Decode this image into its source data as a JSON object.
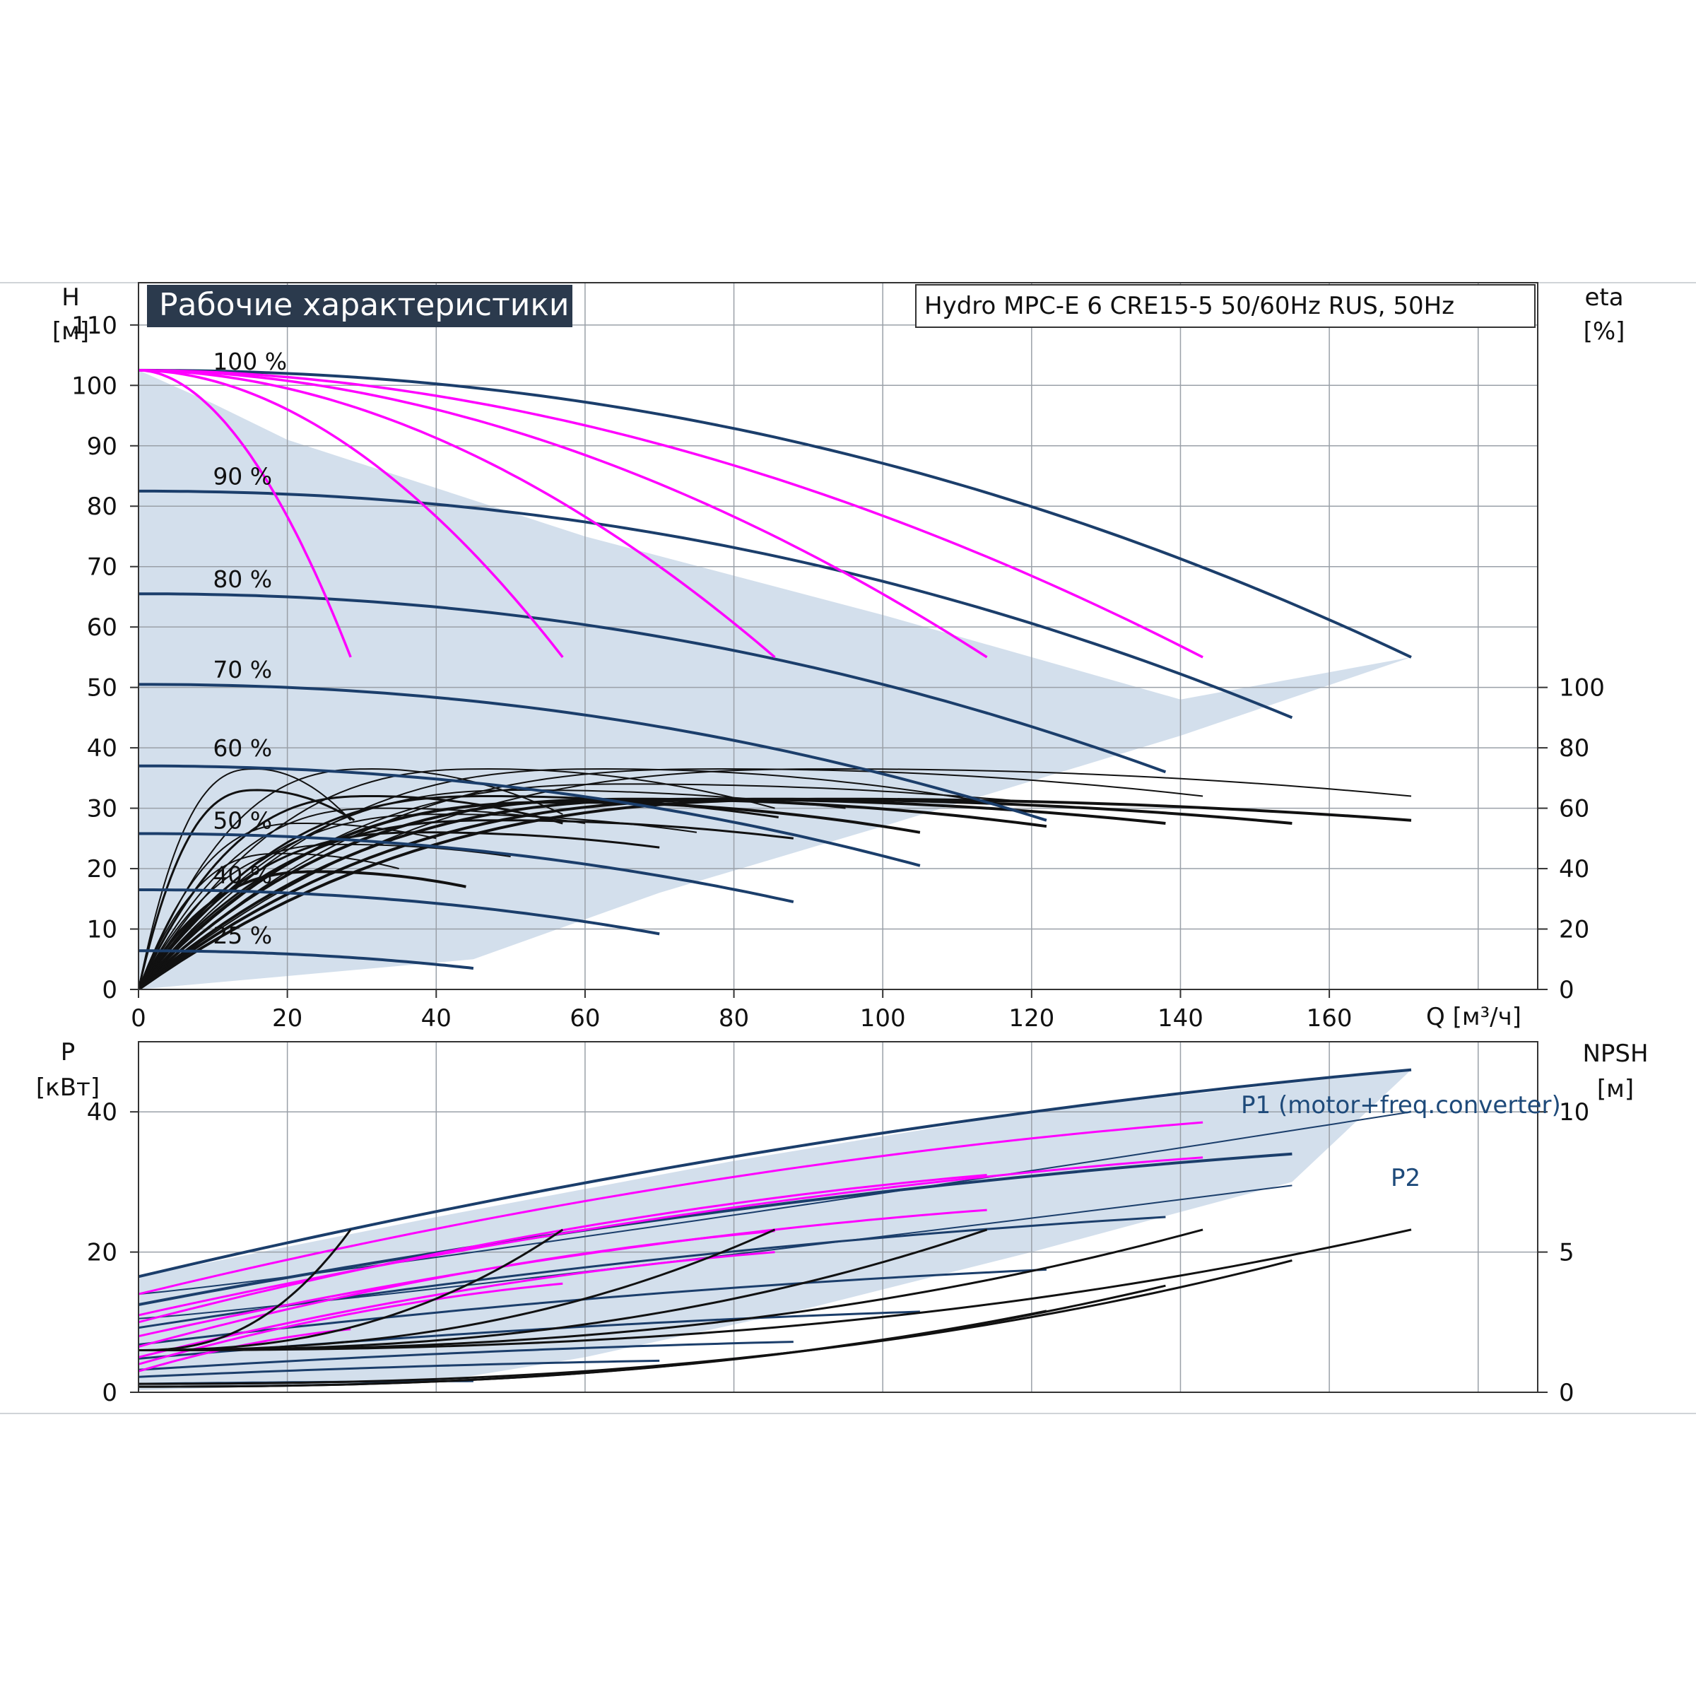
{
  "title": "Рабочие характеристики",
  "subtitle": "Hydro MPC-E 6 CRE15-5 50/60Hz RUS, 50Hz",
  "colors": {
    "envelope": "#d3dfec",
    "envelope_light": "#eef5fb",
    "speed_curve": "#1b3e6b",
    "stage_curve": "#ff00ff",
    "eff_curve": "#111111",
    "grid": "#9aa0a8",
    "title_bg": "#2b3a4d"
  },
  "chart_data": [
    {
      "type": "line",
      "panel": "head",
      "ylabel": "H",
      "yunit": "[м]",
      "y2label": "eta",
      "y2unit": "[%]",
      "xlabel": "Q [м³/ч]",
      "xlim": [
        0,
        188
      ],
      "ylim": [
        0,
        117
      ],
      "xticks": [
        "0",
        "20",
        "40",
        "60",
        "80",
        "100",
        "120",
        "140",
        "160"
      ],
      "yticks": [
        "0",
        "10",
        "20",
        "30",
        "40",
        "50",
        "60",
        "70",
        "80",
        "90",
        "100",
        "110"
      ],
      "y2ticks": [
        "0",
        "20",
        "40",
        "60",
        "80",
        "100"
      ],
      "y2_scale": {
        "eta_0_at_H": 0,
        "eta_100_at_H": 50
      },
      "grid": true,
      "speed_labels": [
        {
          "text": "100 %",
          "q": 10,
          "h": 104
        },
        {
          "text": "90 %",
          "q": 10,
          "h": 85
        },
        {
          "text": "80 %",
          "q": 10,
          "h": 68
        },
        {
          "text": "70 %",
          "q": 10,
          "h": 53
        },
        {
          "text": "60 %",
          "q": 10,
          "h": 40
        },
        {
          "text": "50 %",
          "q": 10,
          "h": 28
        },
        {
          "text": "40 %",
          "q": 10,
          "h": 19
        },
        {
          "text": "25 %",
          "q": 10,
          "h": 9
        }
      ],
      "envelope": [
        [
          0,
          102.5
        ],
        [
          10,
          97
        ],
        [
          20,
          91
        ],
        [
          35,
          85
        ],
        [
          60,
          75
        ],
        [
          100,
          62
        ],
        [
          140,
          48
        ],
        [
          171,
          55
        ],
        [
          140,
          42
        ],
        [
          100,
          27
        ],
        [
          70,
          16
        ],
        [
          45,
          5
        ],
        [
          0,
          0
        ]
      ],
      "speed_curves": [
        {
          "qmax": 171,
          "h0": 102.5,
          "hend": 55,
          "width": 4
        },
        {
          "qmax": 155,
          "h0": 82.5,
          "hend": 45,
          "width": 4
        },
        {
          "qmax": 138,
          "h0": 65.5,
          "hend": 36,
          "width": 4
        },
        {
          "qmax": 122,
          "h0": 50.5,
          "hend": 28,
          "width": 4
        },
        {
          "qmax": 105,
          "h0": 37,
          "hend": 20.5,
          "width": 4
        },
        {
          "qmax": 88,
          "h0": 25.8,
          "hend": 14.5,
          "width": 4
        },
        {
          "qmax": 70,
          "h0": 16.5,
          "hend": 9.2,
          "width": 4
        },
        {
          "qmax": 45,
          "h0": 6.4,
          "hend": 3.5,
          "width": 4
        }
      ],
      "stage_curves": [
        {
          "qmax": 28.5,
          "h0": 102.5,
          "hend": 55
        },
        {
          "qmax": 57,
          "h0": 102.5,
          "hend": 55
        },
        {
          "qmax": 85.5,
          "h0": 102.5,
          "hend": 55
        },
        {
          "qmax": 114,
          "h0": 102.5,
          "hend": 55
        },
        {
          "qmax": 143,
          "h0": 102.5,
          "hend": 55
        }
      ],
      "eff_curves": [
        {
          "qmax": 28.5,
          "peak": 73,
          "end": 56,
          "width": 2
        },
        {
          "qmax": 57,
          "peak": 73,
          "end": 58,
          "width": 2
        },
        {
          "qmax": 85.5,
          "peak": 73,
          "end": 60,
          "width": 2
        },
        {
          "qmax": 114,
          "peak": 73,
          "end": 62,
          "width": 2
        },
        {
          "qmax": 143,
          "peak": 73,
          "end": 64,
          "width": 2
        },
        {
          "qmax": 171,
          "peak": 73,
          "end": 64,
          "width": 2
        },
        {
          "qmax": 29,
          "peak": 66,
          "end": 56,
          "width": 3
        },
        {
          "qmax": 57,
          "peak": 64,
          "end": 55,
          "width": 3
        },
        {
          "qmax": 86,
          "peak": 64,
          "end": 57,
          "width": 3
        },
        {
          "qmax": 105,
          "peak": 62,
          "end": 52,
          "width": 4
        },
        {
          "qmax": 122,
          "peak": 63,
          "end": 54,
          "width": 4
        },
        {
          "qmax": 138,
          "peak": 63,
          "end": 55,
          "width": 4
        },
        {
          "qmax": 155,
          "peak": 63,
          "end": 55,
          "width": 4
        },
        {
          "qmax": 171,
          "peak": 63,
          "end": 56,
          "width": 4
        },
        {
          "qmax": 44,
          "peak": 39,
          "end": 34,
          "width": 4
        },
        {
          "qmax": 70,
          "peak": 52,
          "end": 47,
          "width": 3
        },
        {
          "qmax": 88,
          "peak": 56,
          "end": 50,
          "width": 3
        },
        {
          "qmax": 40,
          "peak": 55,
          "end": 50,
          "width": 2
        },
        {
          "qmax": 60,
          "peak": 60,
          "end": 55,
          "width": 2
        },
        {
          "qmax": 95,
          "peak": 66,
          "end": 60,
          "width": 2
        },
        {
          "qmax": 120,
          "peak": 68,
          "end": 62,
          "width": 2
        },
        {
          "qmax": 50,
          "peak": 48,
          "end": 44,
          "width": 2
        },
        {
          "qmax": 75,
          "peak": 58,
          "end": 52,
          "width": 2
        },
        {
          "qmax": 35,
          "peak": 45,
          "end": 40,
          "width": 2
        }
      ]
    },
    {
      "type": "line",
      "panel": "power",
      "ylabel": "P",
      "yunit": "[кВт]",
      "y2label": "NPSH",
      "y2unit": "[м]",
      "xlim": [
        0,
        188
      ],
      "ylim": [
        0,
        50
      ],
      "yticks": [
        "0",
        "20",
        "40"
      ],
      "y2ticks": [
        "0",
        "5",
        "10"
      ],
      "y2_scale": {
        "npsh_per_kw": 0.25
      },
      "grid": true,
      "labels": {
        "p1": "P1 (motor+freq.converter)",
        "p2": "P2"
      },
      "envelope": [
        [
          0,
          16.5
        ],
        [
          40,
          25
        ],
        [
          80,
          33
        ],
        [
          120,
          40
        ],
        [
          171,
          46
        ],
        [
          155,
          30
        ],
        [
          120,
          20
        ],
        [
          90,
          12
        ],
        [
          60,
          5
        ],
        [
          40,
          1.5
        ],
        [
          0,
          0.3
        ]
      ],
      "p1_speed_curves": [
        {
          "qmax": 171,
          "p0": 16.5,
          "pend": 46,
          "width": 4
        },
        {
          "qmax": 155,
          "p0": 12.5,
          "pend": 34,
          "width": 4
        },
        {
          "qmax": 138,
          "p0": 9.2,
          "pend": 25,
          "width": 3
        },
        {
          "qmax": 122,
          "p0": 6.8,
          "pend": 17.5,
          "width": 3
        },
        {
          "qmax": 105,
          "p0": 4.8,
          "pend": 11.5,
          "width": 3
        },
        {
          "qmax": 88,
          "p0": 3.2,
          "pend": 7.2,
          "width": 3
        },
        {
          "qmax": 70,
          "p0": 2.2,
          "pend": 4.5,
          "width": 3
        },
        {
          "qmax": 45,
          "p0": 1.2,
          "pend": 1.6,
          "width": 3
        }
      ],
      "p2_speed_curves": [
        {
          "qmax": 171,
          "p0": 14,
          "pend": 40,
          "width": 2
        },
        {
          "qmax": 155,
          "p0": 10.5,
          "pend": 29.5,
          "width": 2
        }
      ],
      "stage_curves": [
        {
          "qmax": 143,
          "p0": 14,
          "pend": 38.5
        },
        {
          "qmax": 143,
          "p0": 11,
          "pend": 33.5
        },
        {
          "qmax": 114,
          "p0": 10,
          "pend": 31
        },
        {
          "qmax": 114,
          "p0": 8,
          "pend": 26
        },
        {
          "qmax": 85.5,
          "p0": 6.5,
          "pend": 23
        },
        {
          "qmax": 85.5,
          "p0": 5,
          "pend": 20
        },
        {
          "qmax": 57,
          "p0": 4,
          "pend": 15.5
        },
        {
          "qmax": 28.5,
          "p0": 3,
          "pend": 9
        }
      ],
      "npsh_curves": [
        {
          "qmax": 28.5,
          "n0": 1.5,
          "nend": 5.8
        },
        {
          "qmax": 57,
          "n0": 1.5,
          "nend": 5.8
        },
        {
          "qmax": 85.5,
          "n0": 1.5,
          "nend": 5.8
        },
        {
          "qmax": 114,
          "n0": 1.5,
          "nend": 5.8
        },
        {
          "qmax": 143,
          "n0": 1.5,
          "nend": 5.8
        },
        {
          "qmax": 171,
          "n0": 1.5,
          "nend": 5.8
        },
        {
          "qmax": 155,
          "n0": 0.3,
          "nend": 4.7
        },
        {
          "qmax": 138,
          "n0": 0.2,
          "nend": 3.8
        },
        {
          "qmax": 122,
          "n0": 0.2,
          "nend": 2.9
        }
      ]
    }
  ]
}
